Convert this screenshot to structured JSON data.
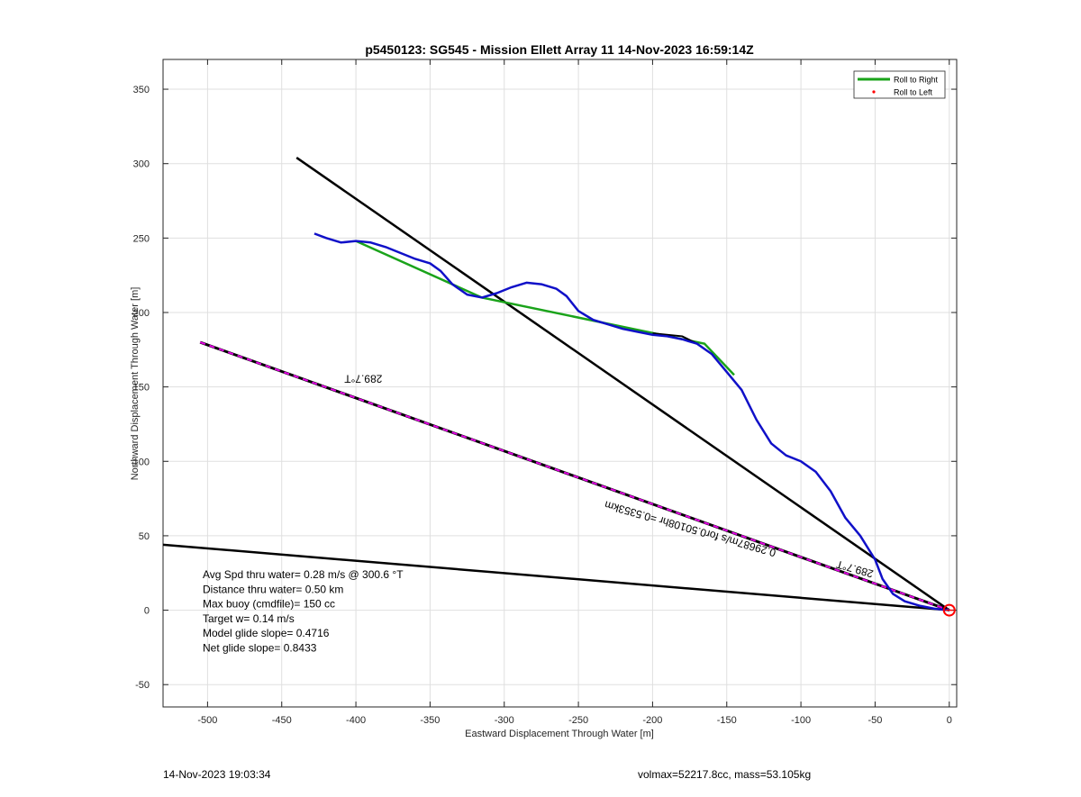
{
  "chart_data": {
    "type": "line",
    "title": "p5450123: SG545 - Mission Ellett Array 11 14-Nov-2023 16:59:14Z",
    "xlabel": "Eastward Displacement Through Water [m]",
    "ylabel": "Northward Displacement Through Water [m]",
    "xlim": [
      -530,
      5
    ],
    "ylim": [
      -65,
      370
    ],
    "xticks": [
      -500,
      -450,
      -400,
      -350,
      -300,
      -250,
      -200,
      -150,
      -100,
      -50,
      0
    ],
    "yticks": [
      -50,
      0,
      50,
      100,
      150,
      200,
      250,
      300,
      350
    ],
    "grid": true,
    "legend_position": "top-right",
    "legend": [
      {
        "name": "Roll to Right",
        "color": "#1aa31a",
        "marker": "line"
      },
      {
        "name": "Roll to Left",
        "color": "#ff0000",
        "marker": "dot"
      }
    ],
    "series": [
      {
        "name": "Roll to Right",
        "color": "#1aa31a",
        "x": [
          -400,
          -315,
          -165,
          -145
        ],
        "y": [
          248,
          210,
          179,
          158
        ]
      },
      {
        "name": "track",
        "color": "#1010c8",
        "x": [
          -428,
          -420,
          -410,
          -400,
          -390,
          -380,
          -370,
          -360,
          -350,
          -343,
          -335,
          -325,
          -315,
          -305,
          -295,
          -285,
          -275,
          -265,
          -258,
          -250,
          -240,
          -230,
          -220,
          -210,
          -200,
          -190,
          -180,
          -170,
          -160,
          -150,
          -140,
          -130,
          -120,
          -110,
          -100,
          -90,
          -80,
          -70,
          -60,
          -50,
          -45,
          -38,
          -30,
          -20,
          -10,
          0
        ],
        "y": [
          253,
          250,
          247,
          248,
          247,
          244,
          240,
          236,
          233,
          228,
          219,
          212,
          210,
          213,
          217,
          220,
          219,
          216,
          211,
          201,
          195,
          192,
          189,
          187,
          185,
          184,
          182,
          179,
          172,
          160,
          148,
          128,
          112,
          104,
          100,
          93,
          80,
          62,
          50,
          34,
          21,
          11,
          6,
          3,
          1,
          0
        ],
        "connector": {
          "x": [
            -200,
            -180,
            -170
          ],
          "y": [
            186,
            184,
            179
          ]
        }
      },
      {
        "name": "dashed-heading",
        "color": "#000000",
        "dash_color": "#e600e6",
        "x": [
          -505,
          0
        ],
        "y": [
          180,
          0
        ]
      },
      {
        "name": "line-upper",
        "color": "#000000",
        "x": [
          -440,
          0
        ],
        "y": [
          304,
          0
        ]
      },
      {
        "name": "line-lower",
        "color": "#000000",
        "x": [
          -530,
          0
        ],
        "y": [
          44,
          0
        ]
      }
    ],
    "marker": {
      "x": 0,
      "y": 0,
      "color": "#ff0000",
      "shape": "circle"
    },
    "annotations": [
      {
        "text": "289.7°T",
        "x": -395,
        "y": 158,
        "rotation_deg": 180
      },
      {
        "text": "289.7°T",
        "x": -63,
        "y": 30,
        "rotation_deg": 196
      },
      {
        "text": "0.29687m/s for0.50108hr =0.5353km",
        "x": -174,
        "y": 57,
        "rotation_deg": 196
      }
    ],
    "stats_text": [
      "Avg Spd thru water=  0.28 m/s @ 300.6 °T",
      "Distance thru water=  0.50 km",
      "Max buoy (cmdfile)= 150 cc",
      "Target w= 0.14 m/s",
      "Model glide slope= 0.4716",
      "Net glide slope= 0.8433"
    ]
  },
  "footer": {
    "left": "14-Nov-2023 19:03:34",
    "right": "volmax=52217.8cc, mass=53.105kg"
  }
}
